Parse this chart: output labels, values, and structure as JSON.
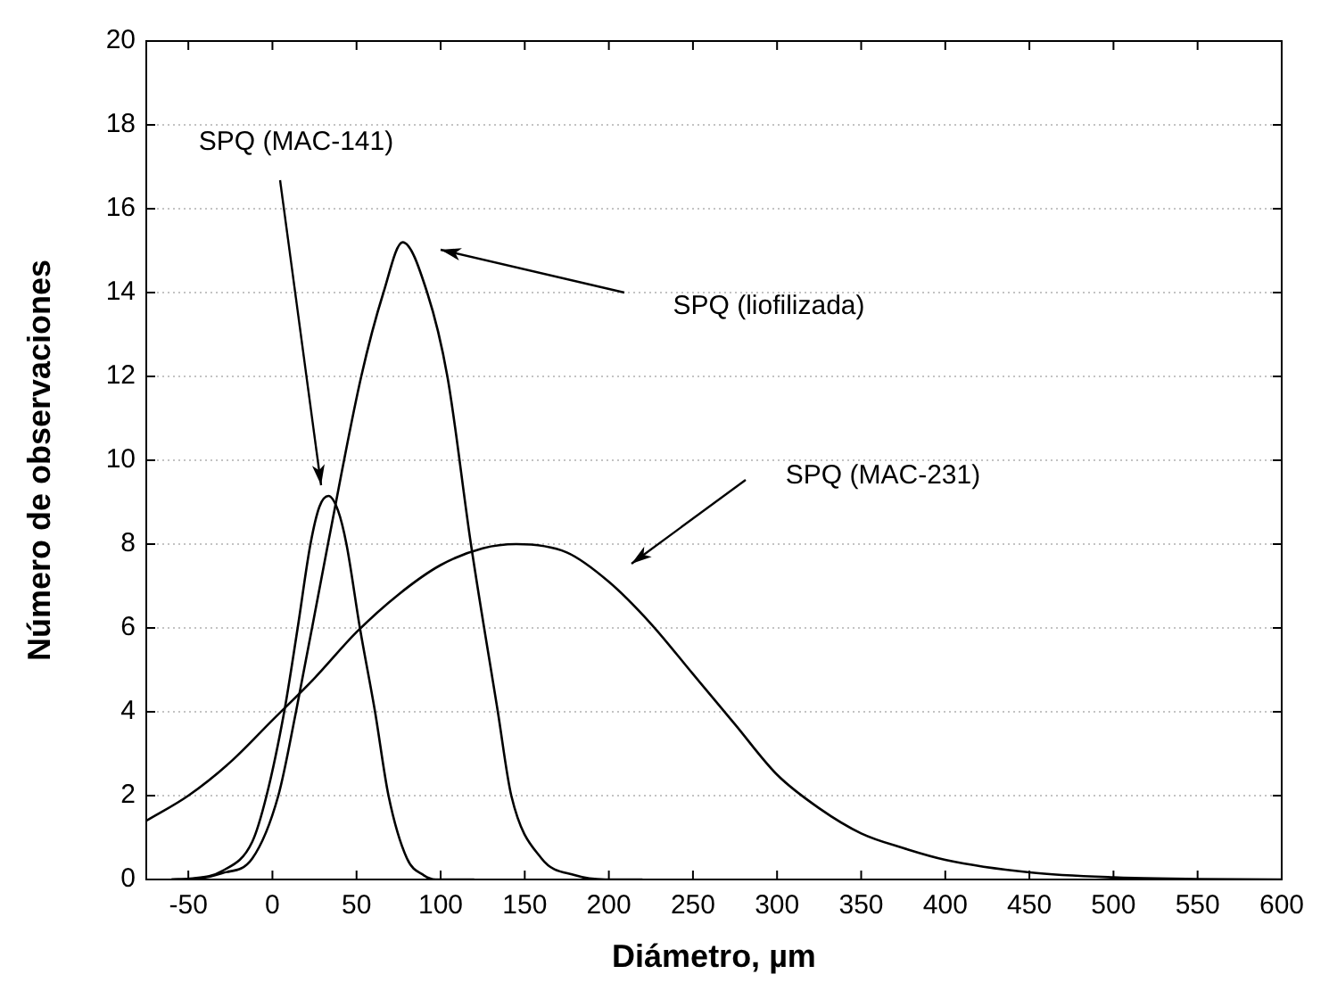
{
  "chart_data": {
    "type": "line",
    "xlabel": "Diámetro, µm",
    "ylabel": "Número de observaciones",
    "xlim": [
      -75,
      600
    ],
    "xticks": [
      -50,
      0,
      50,
      100,
      150,
      200,
      250,
      300,
      350,
      400,
      450,
      500,
      550,
      600
    ],
    "ylim": [
      0,
      20
    ],
    "yticks": [
      0,
      2,
      4,
      6,
      8,
      10,
      12,
      14,
      16,
      18,
      20
    ],
    "grid": "y",
    "marker": "none",
    "series": [
      {
        "color": "#000000",
        "x": [
          -60,
          -49,
          -30,
          -12,
          -3.5,
          7,
          15,
          22.6,
          28,
          33.3,
          39,
          44,
          52,
          61,
          69,
          80,
          90,
          97,
          120
        ],
        "values": [
          0,
          0.02,
          0.2,
          0.9,
          2,
          4,
          6,
          8,
          8.9,
          9.15,
          8.8,
          8,
          6,
          4,
          2,
          0.5,
          0.1,
          0,
          0
        ]
      },
      {
        "color": "#000000",
        "x": [
          -60,
          -45,
          -30,
          -12,
          3.5,
          14,
          33,
          52.8,
          66,
          77.4,
          92,
          104,
          118,
          134,
          142,
          160,
          180,
          198,
          220
        ],
        "values": [
          0,
          0.02,
          0.15,
          0.5,
          2,
          4,
          8,
          12,
          14,
          15.2,
          14,
          12,
          8,
          4,
          2,
          0.5,
          0.1,
          0,
          0
        ]
      },
      {
        "color": "#000000",
        "x": [
          -75,
          -50,
          -25,
          0,
          25,
          50,
          75,
          100,
          125,
          145,
          175,
          200,
          225,
          250,
          275,
          300,
          325,
          350,
          375,
          400,
          450,
          500,
          550,
          600
        ],
        "values": [
          1.4,
          2.0,
          2.8,
          3.8,
          4.8,
          5.9,
          6.8,
          7.5,
          7.9,
          8.0,
          7.8,
          7.1,
          6.1,
          4.9,
          3.7,
          2.5,
          1.7,
          1.1,
          0.75,
          0.47,
          0.17,
          0.05,
          0.01,
          0
        ]
      }
    ],
    "annotations": [
      "SPQ (MAC-141)",
      "SPQ (liofilizada)",
      "SPQ (MAC-231)"
    ]
  }
}
